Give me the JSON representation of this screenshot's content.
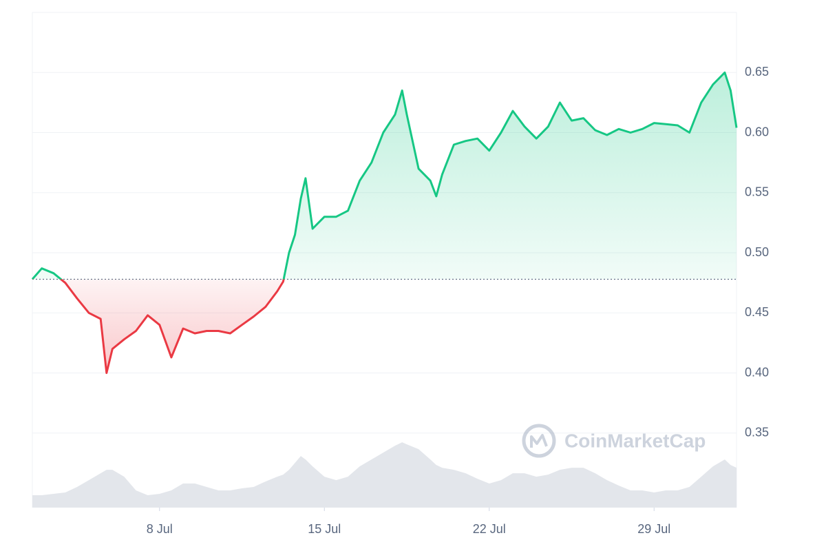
{
  "chart_data": {
    "type": "line",
    "watermark": "CoinMarketCap",
    "x": [
      2.6,
      3,
      3.5,
      4,
      4.5,
      5,
      5.5,
      5.75,
      6,
      6.5,
      7,
      7.5,
      8,
      8.5,
      9,
      9.5,
      10,
      10.5,
      11,
      11.5,
      12,
      12.5,
      13,
      13.25,
      13.5,
      13.75,
      14,
      14.2,
      14.5,
      15,
      15.5,
      16,
      16.5,
      17,
      17.5,
      18,
      18.3,
      18.5,
      19,
      19.5,
      19.75,
      20,
      20.5,
      21,
      21.5,
      22,
      22.5,
      23,
      23.5,
      24,
      24.5,
      25,
      25.5,
      26,
      26.5,
      27,
      27.5,
      28,
      28.5,
      29,
      29.5,
      30,
      30.5,
      31,
      31.5,
      32,
      32.25,
      32.5
    ],
    "series": [
      {
        "values": [
          0.478,
          0.487,
          0.483,
          0.475,
          0.462,
          0.45,
          0.445,
          0.4,
          0.42,
          0.428,
          0.435,
          0.448,
          0.44,
          0.413,
          0.437,
          0.433,
          0.435,
          0.435,
          0.433,
          0.44,
          0.447,
          0.455,
          0.468,
          0.476,
          0.5,
          0.515,
          0.545,
          0.562,
          0.52,
          0.53,
          0.53,
          0.535,
          0.56,
          0.575,
          0.6,
          0.615,
          0.635,
          0.615,
          0.57,
          0.56,
          0.547,
          0.565,
          0.59,
          0.593,
          0.595,
          0.585,
          0.6,
          0.618,
          0.605,
          0.595,
          0.605,
          0.625,
          0.61,
          0.612,
          0.602,
          0.598,
          0.603,
          0.6,
          0.603,
          0.608,
          0.607,
          0.606,
          0.6,
          0.625,
          0.64,
          0.65,
          0.635,
          0.604
        ],
        "color_up": "#16c784",
        "color_down": "#ea3943"
      },
      {
        "axis": "y2",
        "color": "#e3e6eb",
        "values": [
          18,
          18,
          20,
          22,
          30,
          40,
          50,
          55,
          55,
          45,
          25,
          18,
          20,
          25,
          35,
          35,
          30,
          25,
          25,
          28,
          30,
          38,
          45,
          48,
          55,
          65,
          75,
          70,
          60,
          45,
          40,
          45,
          60,
          70,
          80,
          90,
          95,
          92,
          85,
          70,
          62,
          58,
          55,
          50,
          42,
          35,
          40,
          50,
          50,
          45,
          48,
          55,
          58,
          58,
          50,
          40,
          32,
          25,
          25,
          22,
          25,
          25,
          30,
          45,
          60,
          70,
          62,
          58
        ]
      }
    ],
    "baseline": 0.478,
    "xlim": [
      2.6,
      32.5
    ],
    "xticks": [
      {
        "value": 8,
        "label": "8 Jul"
      },
      {
        "value": 15,
        "label": "15 Jul"
      },
      {
        "value": 22,
        "label": "22 Jul"
      },
      {
        "value": 29,
        "label": "29 Jul"
      }
    ],
    "ylim": [
      0.288,
      0.7
    ],
    "yticks": [
      0.35,
      {
        "value": 0.4,
        "label": "0.40"
      },
      0.45,
      {
        "value": 0.5,
        "label": "0.50"
      },
      0.55,
      {
        "value": 0.6,
        "label": "0.60"
      },
      0.65
    ],
    "y2lim": [
      0,
      720
    ],
    "grid": true
  }
}
